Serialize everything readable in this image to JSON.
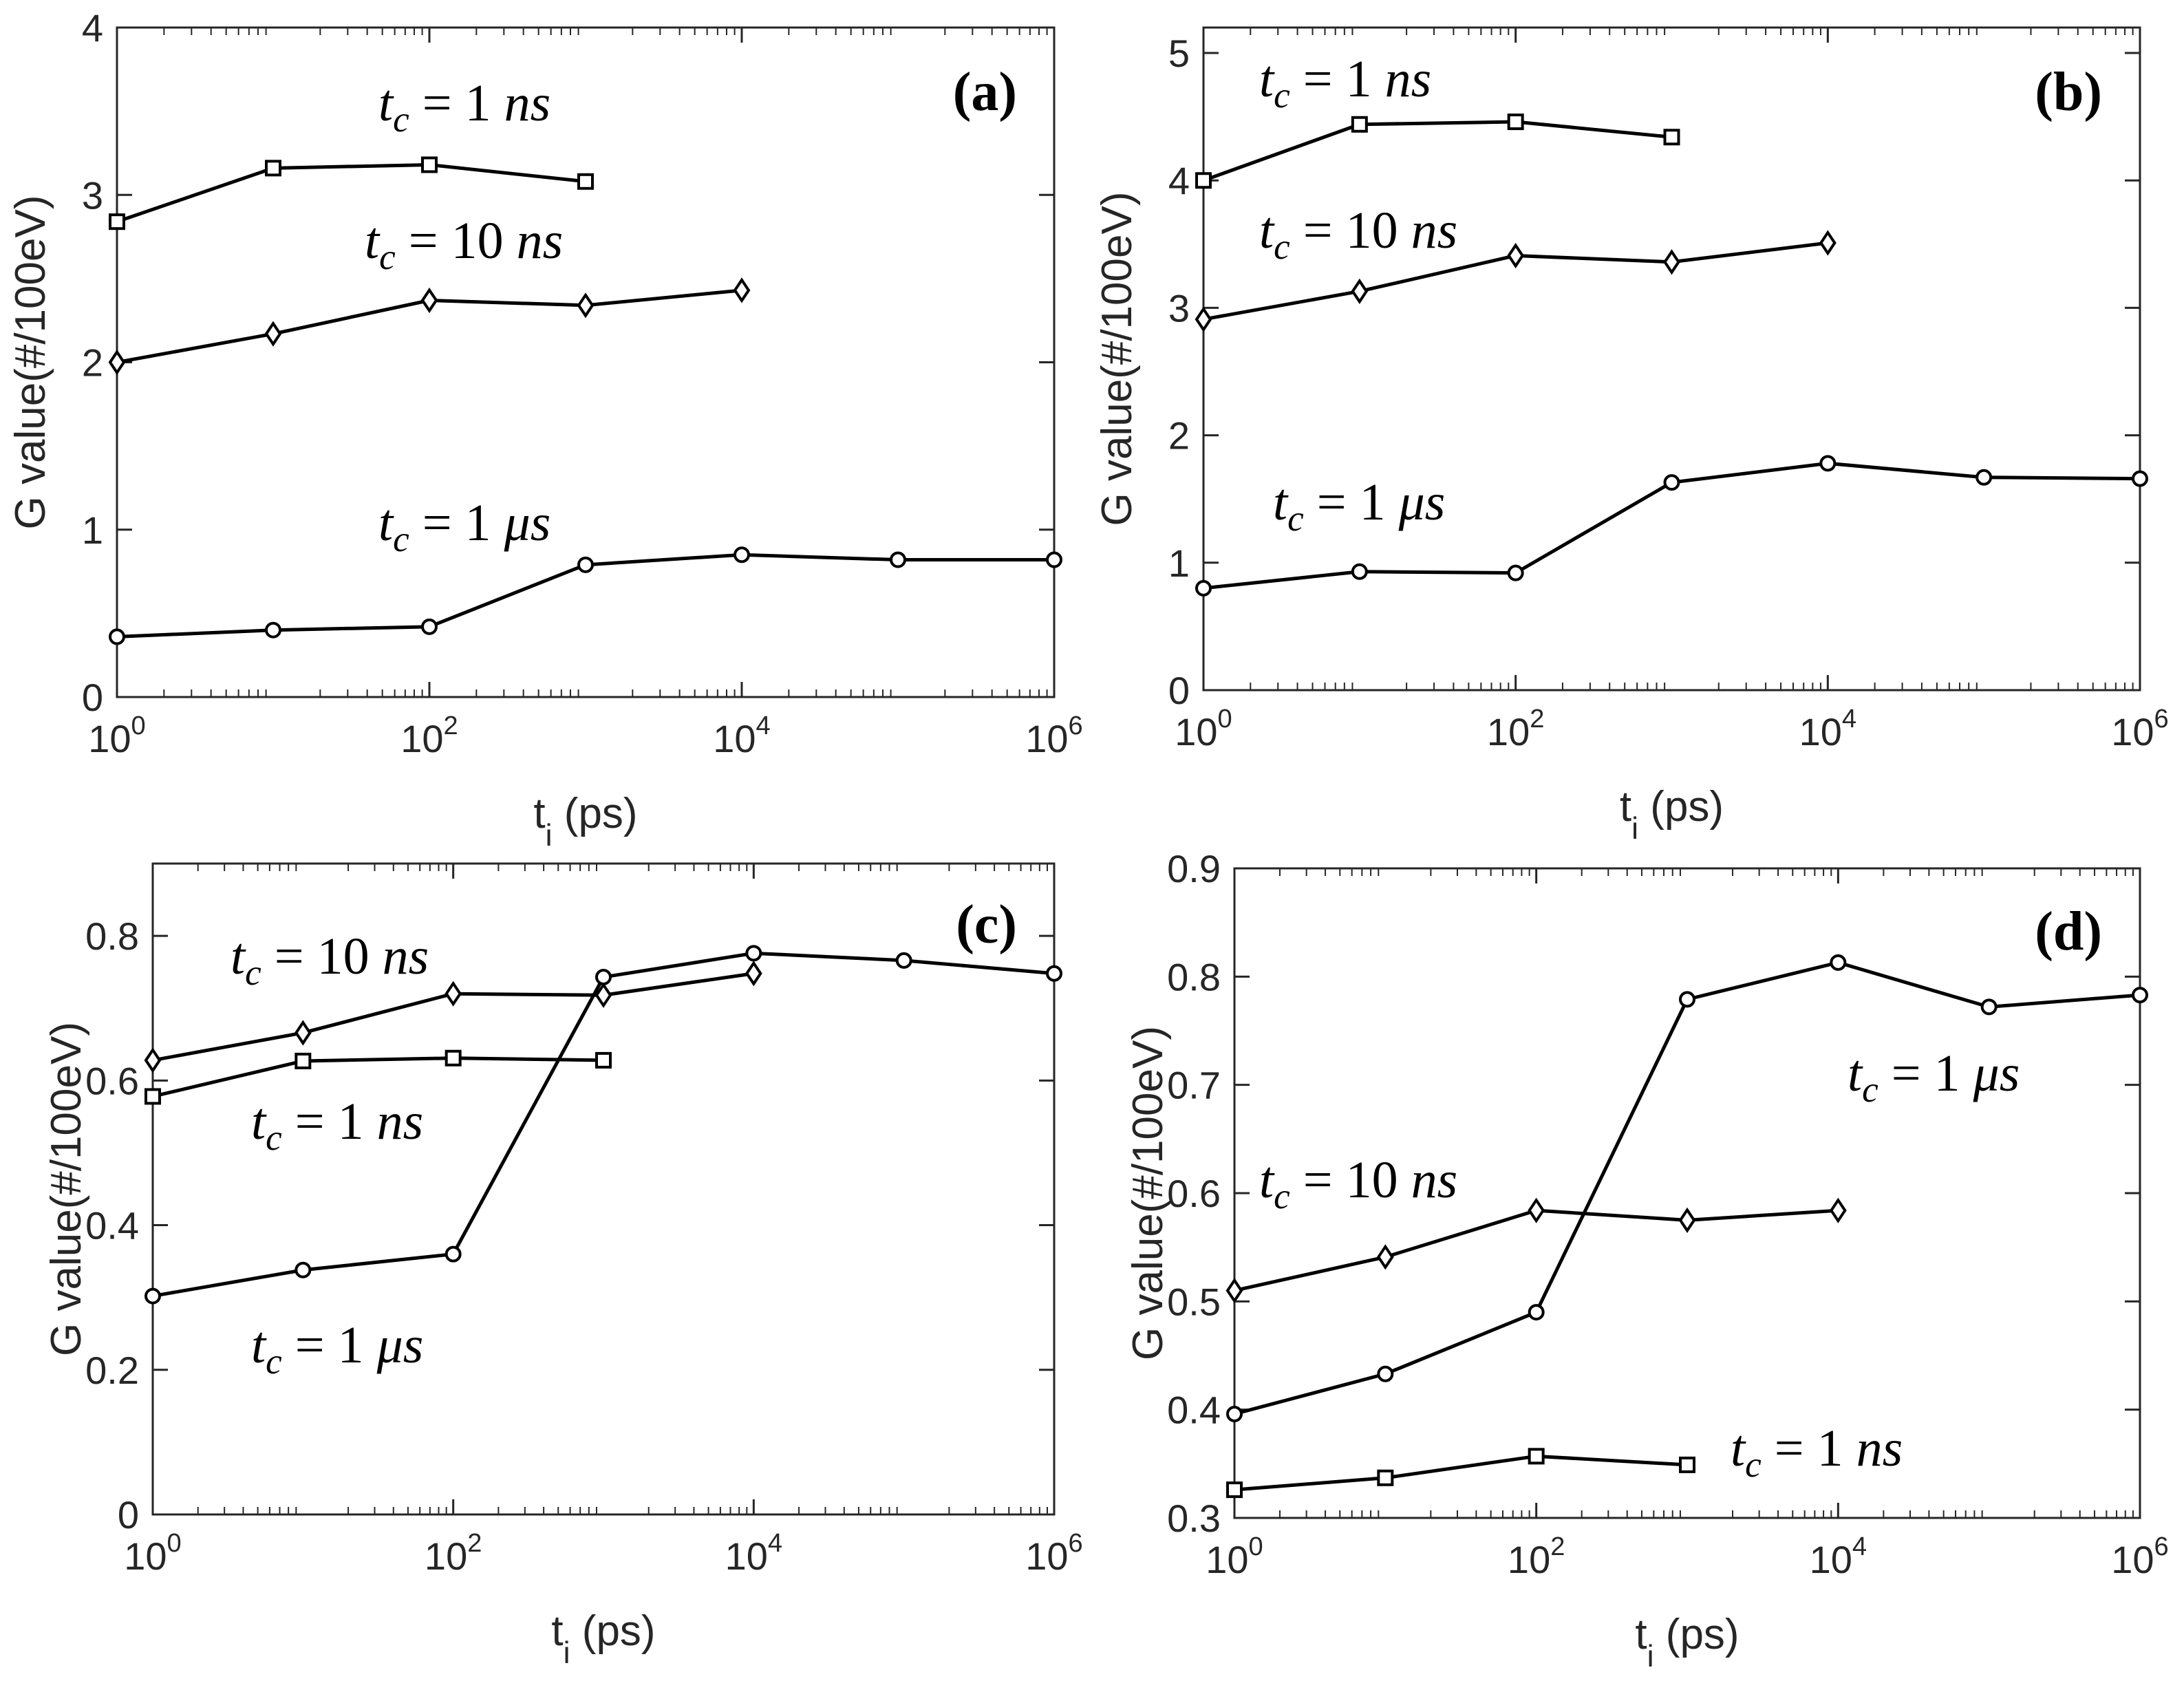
{
  "chart_data": [
    {
      "type": "line",
      "panel_label": "(a)",
      "xlabel": "t",
      "xlabel_sub": "i",
      "xlabel_unit": " (ps)",
      "ylabel": "G value(#/100eV)",
      "xscale": "log",
      "xlim": [
        1,
        1000000
      ],
      "ylim": [
        0,
        4
      ],
      "yticks": [
        "0",
        "1",
        "2",
        "3",
        "4"
      ],
      "xticks": [
        {
          "base": "10",
          "exp": "0"
        },
        {
          "base": "10",
          "exp": "2"
        },
        {
          "base": "10",
          "exp": "4"
        },
        {
          "base": "10",
          "exp": "6"
        }
      ],
      "series": [
        {
          "name": "t_c = 1 ns",
          "marker": "square",
          "x": [
            1,
            10,
            100,
            1000
          ],
          "y": [
            2.84,
            3.16,
            3.18,
            3.08
          ]
        },
        {
          "name": "t_c = 10 ns",
          "marker": "diamond",
          "x": [
            1,
            10,
            100,
            1000,
            10000
          ],
          "y": [
            2.0,
            2.17,
            2.37,
            2.34,
            2.43
          ]
        },
        {
          "name": "t_c = 1 μs",
          "marker": "circle",
          "x": [
            1,
            10,
            100,
            1000,
            10000,
            100000,
            1000000
          ],
          "y": [
            0.36,
            0.4,
            0.42,
            0.79,
            0.85,
            0.82,
            0.82
          ]
        }
      ],
      "annotations": [
        {
          "text": "t_c = 1 ns",
          "main": "t",
          "sub": "c",
          "rest": " = 1 ",
          "unit": "ns"
        },
        {
          "text": "t_c = 10 ns",
          "main": "t",
          "sub": "c",
          "rest": " = 10 ",
          "unit": "ns"
        },
        {
          "text": "t_c = 1 μs",
          "main": "t",
          "sub": "c",
          "rest": " = 1 ",
          "unit": "μs"
        }
      ]
    },
    {
      "type": "line",
      "panel_label": "(b)",
      "xlabel": "t",
      "xlabel_sub": "i",
      "xlabel_unit": " (ps)",
      "ylabel": "G value(#/100eV)",
      "xscale": "log",
      "xlim": [
        1,
        1000000
      ],
      "ylim": [
        0,
        5.2
      ],
      "yticks": [
        "0",
        "1",
        "2",
        "3",
        "4",
        "5"
      ],
      "xticks": [
        {
          "base": "10",
          "exp": "0"
        },
        {
          "base": "10",
          "exp": "2"
        },
        {
          "base": "10",
          "exp": "4"
        },
        {
          "base": "10",
          "exp": "6"
        }
      ],
      "series": [
        {
          "name": "t_c = 1 ns",
          "marker": "square",
          "x": [
            1,
            10,
            100,
            1000
          ],
          "y": [
            4.0,
            4.44,
            4.46,
            4.34
          ]
        },
        {
          "name": "t_c = 10 ns",
          "marker": "diamond",
          "x": [
            1,
            10,
            100,
            1000,
            10000
          ],
          "y": [
            2.91,
            3.13,
            3.41,
            3.36,
            3.51
          ]
        },
        {
          "name": "t_c = 1 μs",
          "marker": "circle",
          "x": [
            1,
            10,
            100,
            1000,
            10000,
            100000,
            1000000
          ],
          "y": [
            0.8,
            0.93,
            0.92,
            1.63,
            1.78,
            1.67,
            1.66
          ]
        }
      ],
      "annotations": [
        {
          "text": "t_c = 1 ns",
          "main": "t",
          "sub": "c",
          "rest": " = 1 ",
          "unit": "ns"
        },
        {
          "text": "t_c = 10 ns",
          "main": "t",
          "sub": "c",
          "rest": " = 10 ",
          "unit": "ns"
        },
        {
          "text": "t_c = 1 μs",
          "main": "t",
          "sub": "c",
          "rest": " = 1 ",
          "unit": "μs"
        }
      ]
    },
    {
      "type": "line",
      "panel_label": "(c)",
      "xlabel": "t",
      "xlabel_sub": "i",
      "xlabel_unit": " (ps)",
      "ylabel": "G value(#/100eV)",
      "xscale": "log",
      "xlim": [
        1,
        1000000
      ],
      "ylim": [
        0,
        0.9
      ],
      "yticks": [
        "0",
        "0.2",
        "0.4",
        "0.6",
        "0.8"
      ],
      "xticks": [
        {
          "base": "10",
          "exp": "0"
        },
        {
          "base": "10",
          "exp": "2"
        },
        {
          "base": "10",
          "exp": "4"
        },
        {
          "base": "10",
          "exp": "6"
        }
      ],
      "series": [
        {
          "name": "t_c = 10 ns",
          "marker": "diamond",
          "x": [
            1,
            10,
            100,
            1000,
            10000
          ],
          "y": [
            0.628,
            0.666,
            0.72,
            0.718,
            0.748
          ]
        },
        {
          "name": "t_c = 1 ns",
          "marker": "square",
          "x": [
            1,
            10,
            100,
            1000
          ],
          "y": [
            0.578,
            0.627,
            0.631,
            0.628
          ]
        },
        {
          "name": "t_c = 1 μs",
          "marker": "circle",
          "x": [
            1,
            10,
            100,
            1000,
            10000,
            100000,
            1000000
          ],
          "y": [
            0.302,
            0.338,
            0.36,
            0.743,
            0.776,
            0.766,
            0.748
          ]
        }
      ],
      "annotations": [
        {
          "text": "t_c = 10 ns",
          "main": "t",
          "sub": "c",
          "rest": " = 10 ",
          "unit": "ns"
        },
        {
          "text": "t_c = 1 ns",
          "main": "t",
          "sub": "c",
          "rest": " = 1 ",
          "unit": "ns"
        },
        {
          "text": "t_c = 1 μs",
          "main": "t",
          "sub": "c",
          "rest": " = 1 ",
          "unit": "μs"
        }
      ]
    },
    {
      "type": "line",
      "panel_label": "(d)",
      "xlabel": "t",
      "xlabel_sub": "i",
      "xlabel_unit": " (ps)",
      "ylabel": "G value(#/100eV)",
      "xscale": "log",
      "xlim": [
        1,
        1000000
      ],
      "ylim": [
        0.3,
        0.9
      ],
      "yticks": [
        "0.3",
        "0.4",
        "0.5",
        "0.6",
        "0.7",
        "0.8",
        "0.9"
      ],
      "xticks": [
        {
          "base": "10",
          "exp": "0"
        },
        {
          "base": "10",
          "exp": "2"
        },
        {
          "base": "10",
          "exp": "4"
        },
        {
          "base": "10",
          "exp": "6"
        }
      ],
      "series": [
        {
          "name": "t_c = 1 μs",
          "marker": "circle",
          "x": [
            1,
            10,
            100,
            1000,
            10000,
            100000,
            1000000
          ],
          "y": [
            0.396,
            0.433,
            0.49,
            0.779,
            0.813,
            0.772,
            0.783
          ]
        },
        {
          "name": "t_c = 10 ns",
          "marker": "diamond",
          "x": [
            1,
            10,
            100,
            1000,
            10000
          ],
          "y": [
            0.51,
            0.541,
            0.584,
            0.575,
            0.584
          ]
        },
        {
          "name": "t_c = 1 ns",
          "marker": "square",
          "x": [
            1,
            10,
            100,
            1000
          ],
          "y": [
            0.326,
            0.337,
            0.357,
            0.349
          ]
        }
      ],
      "annotations": [
        {
          "text": "t_c = 1 μs",
          "main": "t",
          "sub": "c",
          "rest": " = 1 ",
          "unit": "μs"
        },
        {
          "text": "t_c = 10 ns",
          "main": "t",
          "sub": "c",
          "rest": " = 10 ",
          "unit": "ns"
        },
        {
          "text": "t_c = 1 ns",
          "main": "t",
          "sub": "c",
          "rest": " = 1 ",
          "unit": "ns"
        }
      ]
    }
  ]
}
